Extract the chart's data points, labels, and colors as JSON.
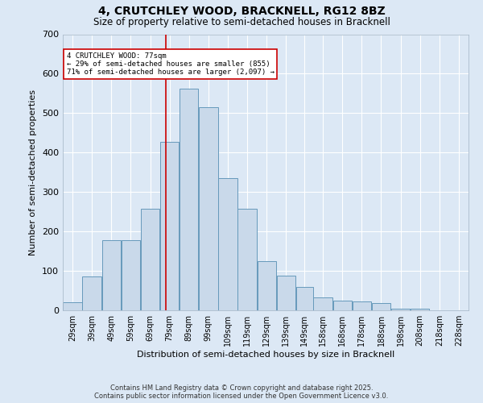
{
  "title_line1": "4, CRUTCHLEY WOOD, BRACKNELL, RG12 8BZ",
  "title_line2": "Size of property relative to semi-detached houses in Bracknell",
  "xlabel": "Distribution of semi-detached houses by size in Bracknell",
  "ylabel": "Number of semi-detached properties",
  "bin_labels": [
    "29sqm",
    "39sqm",
    "49sqm",
    "59sqm",
    "69sqm",
    "79sqm",
    "89sqm",
    "99sqm",
    "109sqm",
    "119sqm",
    "129sqm",
    "139sqm",
    "149sqm",
    "158sqm",
    "168sqm",
    "178sqm",
    "188sqm",
    "198sqm",
    "208sqm",
    "218sqm",
    "228sqm"
  ],
  "bin_edges": [
    24,
    34,
    44,
    54,
    64,
    74,
    84,
    94,
    104,
    114,
    124,
    134,
    144,
    153,
    163,
    173,
    183,
    193,
    203,
    213,
    223,
    233
  ],
  "counts": [
    20,
    85,
    177,
    177,
    258,
    428,
    562,
    516,
    335,
    257,
    125,
    87,
    60,
    32,
    25,
    22,
    18,
    5,
    5,
    0,
    0
  ],
  "property_size": 77,
  "bar_face_color": "#c9d9ea",
  "bar_edge_color": "#6699bb",
  "vline_color": "#cc0000",
  "annotation_text": "4 CRUTCHLEY WOOD: 77sqm\n← 29% of semi-detached houses are smaller (855)\n71% of semi-detached houses are larger (2,097) →",
  "annotation_box_color": "#ffffff",
  "annotation_box_edge": "#cc0000",
  "footnote": "Contains HM Land Registry data © Crown copyright and database right 2025.\nContains public sector information licensed under the Open Government Licence v3.0.",
  "ylim": [
    0,
    700
  ],
  "background_color": "#dce8f5",
  "grid_color": "#ffffff"
}
